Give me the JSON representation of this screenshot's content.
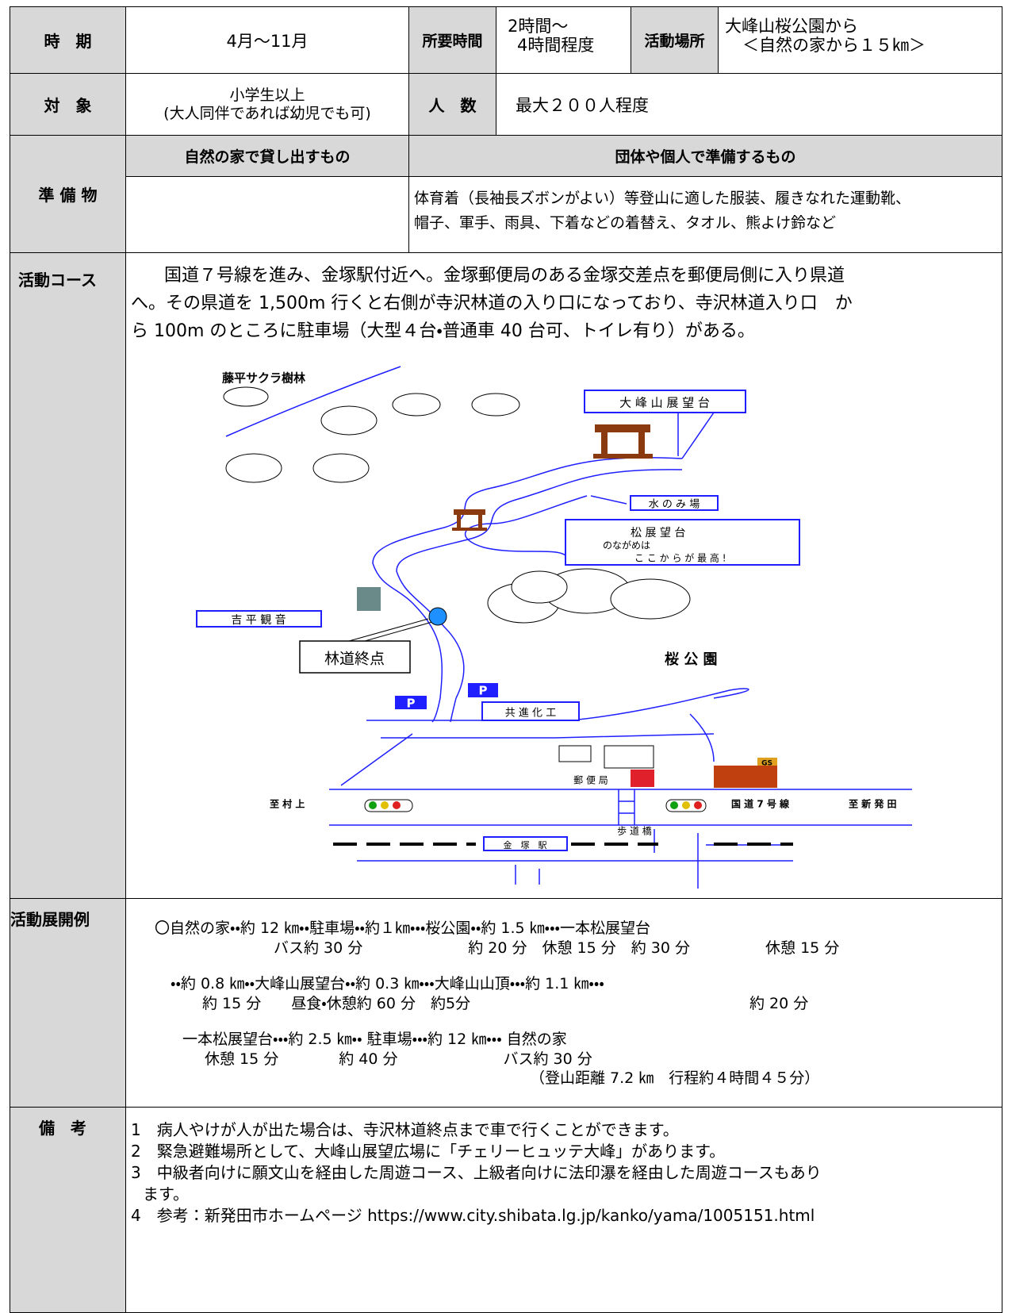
{
  "table": {
    "period": {
      "label": "時　期",
      "value": "4月～11月"
    },
    "duration": {
      "label": "所要時間",
      "value": [
        "2時間～",
        "4時間程度"
      ]
    },
    "place": {
      "label": "活動場所",
      "value": [
        "大峰山桜公園から",
        "＜自然の家から１５㎞＞"
      ]
    },
    "target": {
      "label": "対　象",
      "value": [
        "小学生以上",
        "(大人同伴であれば幼児でも可)"
      ]
    },
    "capacity": {
      "label": "人　数",
      "value": "最大２００人程度"
    },
    "equipment": {
      "label": "準 備 物",
      "lent_header": "自然の家で貸し出すもの",
      "own_header": "団体や個人で準備するもの",
      "own": [
        "体育着（長袖長ズボンがよい）等登山に適した服装、履きなれた運動靴、",
        "帽子、軍手、雨具、下着などの着替え、タオル、熊よけ鈴など"
      ]
    },
    "course": {
      "label": "活動コース",
      "text": [
        "国道７号線を進み、金塚駅付近へ。金塚郵便局のある金塚交差点を郵便局側に入り県道",
        "へ。その県道を 1,500m 行くと右側が寺沢林道の入り口になっており、寺沢林道入り口　か",
        "ら 100m のところに駐車場（大型４台・普通車 40 台可、トイレ有り）がある。"
      ]
    },
    "map": {
      "labels": [
        "藤平サクラ樹林",
        "大 峰 山 展 望 台",
        "水 の み 場",
        "松 展 望 台",
        "のながめは",
        "こ こ か ら が 最 高 !",
        "吉 平 観 音",
        "林道終点",
        "桜 公 園",
        "P",
        "P",
        "共 進 化 工",
        "郵 便 局",
        "至 村 上",
        "国 道 7 号 線",
        "至 新 発 田",
        "歩 道 橋",
        "金　塚　駅",
        "GS"
      ]
    },
    "example": {
      "label": "活動展開例",
      "lines": [
        "〇自然の家・・約 12 ㎞・・駐車場・・約１㎞・・・桜公園・・約 1.5 ㎞・・・一本松展望台",
        "バス約 30 分　　　　　　　約 20 分　休憩 15 分　約 30 分　　　　　休憩 15 分",
        "・・約 0.8 ㎞・・大峰山展望台・・約 0.3 ㎞・・・大峰山山頂・・・約 1.1 ㎞・・・",
        "約 15 分　　昼食・休憩約 60 分　約5分",
        "約 20 分",
        "一本松展望台・・・約 2.5 ㎞・・ 駐車場・・・約 12 ㎞・・・ 自然の家",
        "休憩 15 分　　　　約 40 分　　　　　　　バス約 30 分",
        "（登山距離 7.2 ㎞　行程約４時間４５分）"
      ]
    },
    "notes": {
      "label": "備　考",
      "lines": [
        "1　病人やけが人が出た場合は、寺沢林道終点まで車で行くことができます。",
        "2　緊急避難場所として、大峰山展望広場に「チェリーヒュッテ大峰」があります。",
        "3　中級者向けに願文山を経由した周遊コース、上級者向けに法印瀑を経由した周遊コースもあり",
        "ます。",
        "4　参考：新発田市ホームページ https://www.city.shibata.lg.jp/kanko/yama/1005151.html"
      ]
    }
  }
}
